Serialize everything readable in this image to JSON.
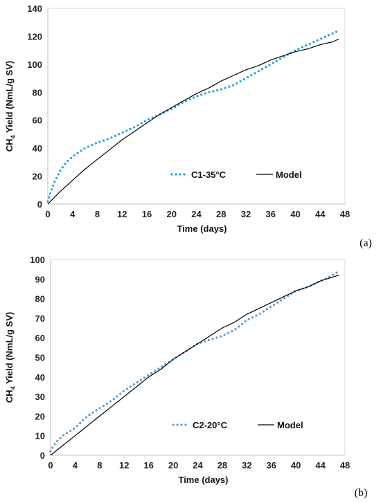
{
  "chart_data": [
    {
      "type": "line",
      "panel_label": "(a)",
      "title": "",
      "xlabel": "Time (days)",
      "ylabel_prefix": "CH",
      "ylabel_sub": "4",
      "ylabel_rest": "  Yield (NmL/g SV)",
      "xlim": [
        0,
        48
      ],
      "ylim": [
        0,
        140
      ],
      "xticks": [
        "0",
        "4",
        "8",
        "12",
        "16",
        "20",
        "24",
        "28",
        "32",
        "36",
        "40",
        "44",
        "48"
      ],
      "yticks": [
        "0",
        "20",
        "40",
        "60",
        "80",
        "100",
        "120",
        "140"
      ],
      "grid": false,
      "legend_position": "lower-right inside",
      "series": [
        {
          "name": "C1-35°C",
          "style": "dotted",
          "color": "#1ea6dc",
          "x": [
            0,
            0.5,
            1,
            2,
            3,
            4,
            5,
            6,
            7,
            8,
            10,
            12,
            14,
            16,
            18,
            20,
            22,
            24,
            26,
            28,
            30,
            32,
            34,
            36,
            38,
            40,
            42,
            44,
            46,
            47
          ],
          "y": [
            2,
            9,
            15,
            24,
            30,
            34,
            37,
            40,
            42,
            44,
            47,
            51,
            55,
            60,
            64,
            68,
            73,
            77,
            80,
            82,
            85,
            90,
            95,
            100,
            105,
            110,
            114,
            118,
            122,
            124
          ]
        },
        {
          "name": "Model",
          "style": "solid",
          "color": "#000000",
          "x": [
            0,
            2,
            4,
            6,
            8,
            10,
            12,
            14,
            16,
            18,
            20,
            22,
            24,
            26,
            28,
            30,
            32,
            34,
            36,
            38,
            40,
            42,
            44,
            46,
            47
          ],
          "y": [
            0,
            9,
            17,
            25,
            32,
            39,
            46,
            52,
            58,
            64,
            69,
            74,
            79,
            83,
            88,
            92,
            96,
            99,
            103,
            106,
            109,
            111,
            114,
            116,
            118
          ]
        }
      ]
    },
    {
      "type": "line",
      "panel_label": "(b)",
      "title": "",
      "xlabel": "Time (days)",
      "ylabel_prefix": "CH",
      "ylabel_sub": "4",
      "ylabel_rest": "  Yield (NmL/g SV)",
      "xlim": [
        0,
        48
      ],
      "ylim": [
        0,
        100
      ],
      "xticks": [
        "0",
        "4",
        "8",
        "12",
        "16",
        "20",
        "24",
        "28",
        "32",
        "36",
        "40",
        "44",
        "48"
      ],
      "yticks": [
        "0",
        "10",
        "20",
        "30",
        "40",
        "50",
        "60",
        "70",
        "80",
        "90",
        "100"
      ],
      "grid": false,
      "legend_position": "lower-right inside",
      "series": [
        {
          "name": "C2-20°C",
          "style": "dotted",
          "color": "#5b9bd5",
          "x": [
            0,
            0.5,
            1,
            2,
            3,
            4,
            6,
            8,
            10,
            12,
            14,
            16,
            18,
            20,
            22,
            24,
            26,
            28,
            30,
            32,
            34,
            36,
            38,
            40,
            42,
            44,
            46,
            47
          ],
          "y": [
            2,
            5,
            7,
            10,
            12,
            14,
            20,
            24,
            28,
            33,
            37,
            41,
            45,
            49,
            53,
            57,
            59,
            61,
            64,
            69,
            72,
            76,
            80,
            84,
            86,
            89,
            92,
            94
          ]
        },
        {
          "name": "Model",
          "style": "solid",
          "color": "#000000",
          "x": [
            0,
            2,
            4,
            6,
            8,
            10,
            12,
            14,
            16,
            18,
            20,
            22,
            24,
            26,
            28,
            30,
            32,
            34,
            36,
            38,
            40,
            42,
            44,
            46,
            47
          ],
          "y": [
            0,
            5,
            10,
            15,
            20,
            25,
            30,
            35,
            40,
            44,
            49,
            53,
            57,
            61,
            65,
            68,
            72,
            75,
            78,
            81,
            84,
            86,
            89,
            91,
            92
          ]
        }
      ]
    }
  ]
}
